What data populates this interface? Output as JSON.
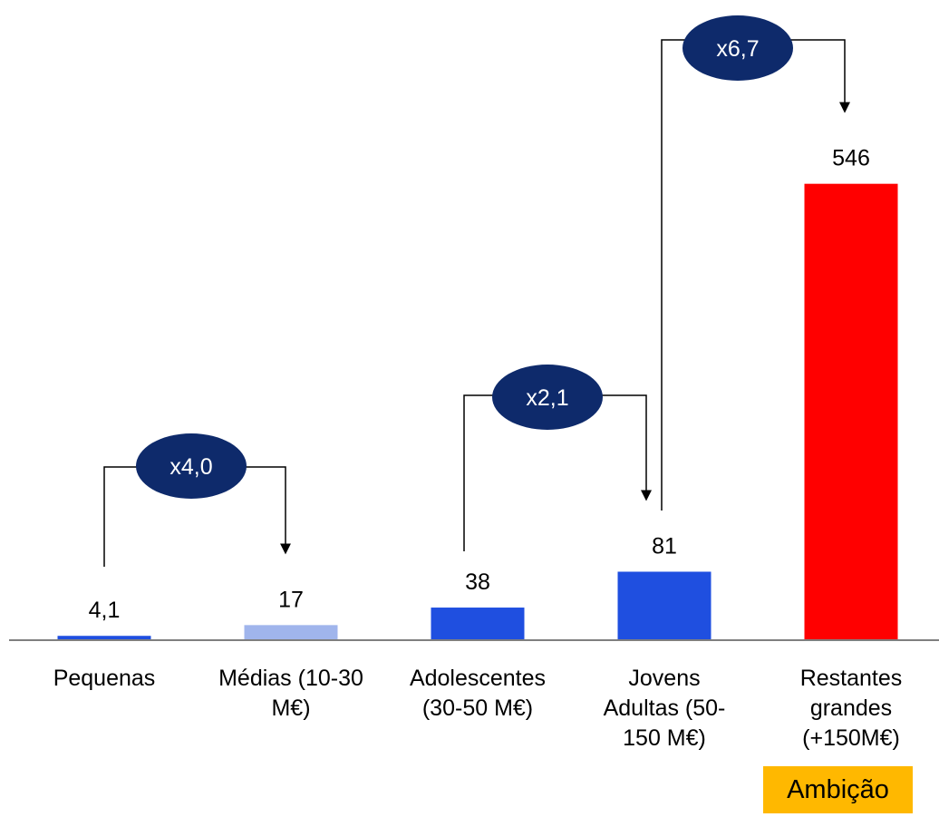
{
  "chart_data": {
    "type": "bar",
    "categories": [
      [
        "Pequenas"
      ],
      [
        "Médias (10-30",
        "M€)"
      ],
      [
        "Adolescentes",
        "(30-50 M€)"
      ],
      [
        "Jovens",
        "Adultas (50-",
        "150 M€)"
      ],
      [
        "Restantes",
        "grandes",
        "(+150M€)"
      ]
    ],
    "values": [
      4.1,
      17,
      38,
      81,
      546
    ],
    "value_labels": [
      "4,1",
      "17",
      "38",
      "81",
      "546"
    ],
    "colors": [
      "#1f4fe0",
      "#a0b5ec",
      "#1f4fe0",
      "#1f4fe0",
      "#ff0000"
    ],
    "multipliers": [
      {
        "from": 0,
        "to": 1,
        "label": "x4,0"
      },
      {
        "from": 2,
        "to": 3,
        "label": "x2,1"
      },
      {
        "from": 3,
        "to": 4,
        "label": "x6,7"
      }
    ],
    "multiplier_color": "#0e2a6b",
    "badge": {
      "label": "Ambição",
      "color": "#ffb800"
    },
    "axis_color": "#7f7f7f"
  }
}
